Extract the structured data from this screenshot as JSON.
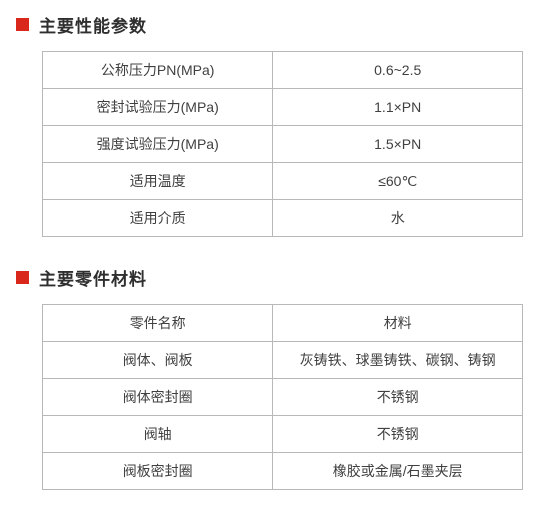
{
  "section1": {
    "title": "主要性能参数",
    "rows": [
      {
        "label": "公称压力PN(MPa)",
        "value": "0.6~2.5"
      },
      {
        "label": "密封试验压力(MPa)",
        "value": "1.1×PN"
      },
      {
        "label": "强度试验压力(MPa)",
        "value": "1.5×PN"
      },
      {
        "label": "适用温度",
        "value": "≤60℃"
      },
      {
        "label": "适用介质",
        "value": "水"
      }
    ]
  },
  "section2": {
    "title": "主要零件材料",
    "rows": [
      {
        "label": "零件名称",
        "value": "材料"
      },
      {
        "label": "阀体、阀板",
        "value": "灰铸铁、球墨铸铁、碳钢、铸钢"
      },
      {
        "label": "阀体密封圈",
        "value": "不锈钢"
      },
      {
        "label": "阀轴",
        "value": "不锈钢"
      },
      {
        "label": "阀板密封圈",
        "value": "橡胶或金属/石墨夹层"
      }
    ]
  }
}
